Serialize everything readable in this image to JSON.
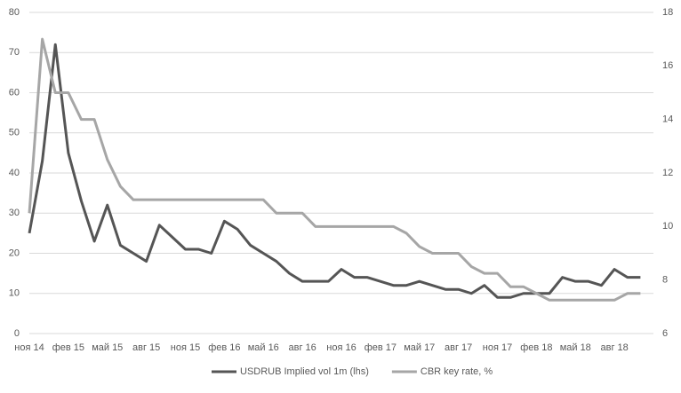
{
  "chart_data": {
    "type": "line",
    "x": [
      "2014-11",
      "2014-12",
      "2015-01",
      "2015-02",
      "2015-03",
      "2015-04",
      "2015-05",
      "2015-06",
      "2015-07",
      "2015-08",
      "2015-09",
      "2015-10",
      "2015-11",
      "2015-12",
      "2016-01",
      "2016-02",
      "2016-03",
      "2016-04",
      "2016-05",
      "2016-06",
      "2016-07",
      "2016-08",
      "2016-09",
      "2016-10",
      "2016-11",
      "2016-12",
      "2017-01",
      "2017-02",
      "2017-03",
      "2017-04",
      "2017-05",
      "2017-06",
      "2017-07",
      "2017-08",
      "2017-09",
      "2017-10",
      "2017-11",
      "2017-12",
      "2018-01",
      "2018-02",
      "2018-03",
      "2018-04",
      "2018-05",
      "2018-06",
      "2018-07",
      "2018-08",
      "2018-09",
      "2018-10"
    ],
    "xlim": [
      "2014-11",
      "2018-11"
    ],
    "xticks": [
      {
        "value": "2014-11",
        "label": "ноя 14"
      },
      {
        "value": "2015-02",
        "label": "фев 15"
      },
      {
        "value": "2015-05",
        "label": "май 15"
      },
      {
        "value": "2015-08",
        "label": "авг 15"
      },
      {
        "value": "2015-11",
        "label": "ноя 15"
      },
      {
        "value": "2016-02",
        "label": "фев 16"
      },
      {
        "value": "2016-05",
        "label": "май 16"
      },
      {
        "value": "2016-08",
        "label": "авг 16"
      },
      {
        "value": "2016-11",
        "label": "ноя 16"
      },
      {
        "value": "2017-02",
        "label": "фев 17"
      },
      {
        "value": "2017-05",
        "label": "май 17"
      },
      {
        "value": "2017-08",
        "label": "авг 17"
      },
      {
        "value": "2017-11",
        "label": "ноя 17"
      },
      {
        "value": "2018-02",
        "label": "фев 18"
      },
      {
        "value": "2018-05",
        "label": "май 18"
      },
      {
        "value": "2018-08",
        "label": "авг 18"
      }
    ],
    "ylim": [
      0,
      80
    ],
    "yticks": [
      0,
      10,
      20,
      30,
      40,
      50,
      60,
      70,
      80
    ],
    "y2lim": [
      6,
      18
    ],
    "y2ticks": [
      6,
      8,
      10,
      12,
      14,
      16,
      18
    ],
    "grid": true,
    "legend": "bottom",
    "series": [
      {
        "name": "USDRUB Implied vol 1m (lhs)",
        "color": "#555555",
        "values": [
          25,
          43,
          72,
          45,
          33,
          23,
          32,
          22,
          20,
          18,
          27,
          24,
          21,
          21,
          20,
          28,
          26,
          22,
          20,
          18,
          15,
          13,
          13,
          13,
          16,
          14,
          14,
          13,
          12,
          12,
          13,
          12,
          11,
          11,
          10,
          12,
          9,
          9,
          10,
          10,
          10,
          14,
          13,
          13,
          12,
          16,
          14,
          14
        ]
      },
      {
        "name": "CBR key rate, %",
        "color": "#a6a6a6",
        "axis": "y2",
        "values": [
          10.5,
          17,
          15,
          15,
          14,
          14,
          12.5,
          11.5,
          11,
          11,
          11,
          11,
          11,
          11,
          11,
          11,
          11,
          11,
          11,
          10.5,
          10.5,
          10.5,
          10,
          10,
          10,
          10,
          10,
          10,
          10,
          9.75,
          9.25,
          9,
          9,
          9,
          8.5,
          8.25,
          8.25,
          7.75,
          7.75,
          7.5,
          7.25,
          7.25,
          7.25,
          7.25,
          7.25,
          7.25,
          7.5,
          7.5
        ]
      }
    ]
  }
}
